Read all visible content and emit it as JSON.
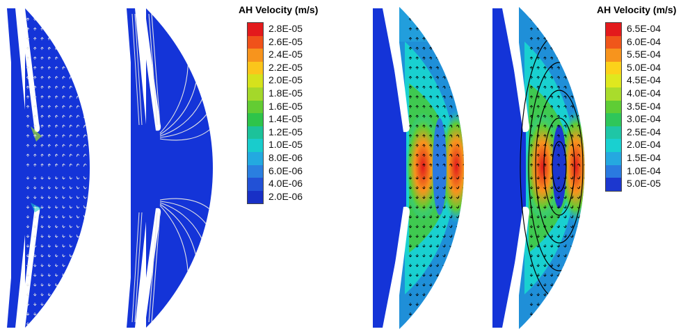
{
  "legend_left": {
    "title": "AH  Velocity (m/s)",
    "labels": [
      "2.8E-05",
      "2.6E-05",
      "2.4E-05",
      "2.2E-05",
      "2.0E-05",
      "1.8E-05",
      "1.6E-05",
      "1.4E-05",
      "1.2E-05",
      "1.0E-05",
      "8.0E-06",
      "6.0E-06",
      "4.0E-06",
      "2.0E-06"
    ],
    "colors": [
      "#e31a1c",
      "#f0521a",
      "#f7941d",
      "#fbc51b",
      "#d5e21c",
      "#a4d82a",
      "#63cc33",
      "#2ec44a",
      "#1cc29a",
      "#19cccc",
      "#23a9e0",
      "#2a7fe0",
      "#2251d6",
      "#1830c6"
    ]
  },
  "legend_right": {
    "title": "AH  Velocity (m/s)",
    "labels": [
      "6.5E-04",
      "6.0E-04",
      "5.5E-04",
      "5.0E-04",
      "4.5E-04",
      "4.0E-04",
      "3.5E-04",
      "3.0E-04",
      "2.5E-04",
      "2.0E-04",
      "1.5E-04",
      "1.0E-04",
      "5.0E-05"
    ],
    "colors": [
      "#e31a1c",
      "#f0561a",
      "#f7941d",
      "#fcd21a",
      "#dfe81f",
      "#a9dc2c",
      "#5fcd35",
      "#2fc65a",
      "#1fc6a6",
      "#19d0d0",
      "#25a8e0",
      "#2a7ae0",
      "#1c37cf"
    ]
  },
  "colors": {
    "field_blue": "#1434d8",
    "arrow_white": "#e6e6e6",
    "arrow_black": "#000000"
  }
}
